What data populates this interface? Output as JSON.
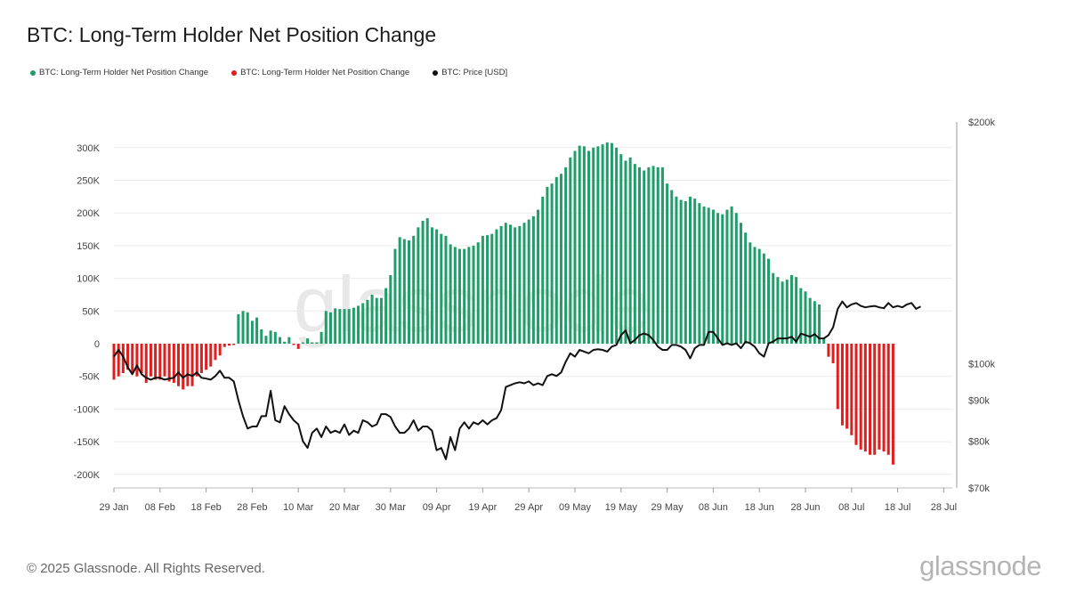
{
  "title": "BTC: Long-Term Holder Net Position Change",
  "legend": [
    {
      "label": "BTC: Long-Term Holder Net Position Change",
      "color": "#1f9e6a"
    },
    {
      "label": "BTC: Long-Term Holder Net Position Change",
      "color": "#e01e1e"
    },
    {
      "label": "BTC: Price [USD]",
      "color": "#111111"
    }
  ],
  "footer": "© 2025 Glassnode. All Rights Reserved.",
  "logo": "glassnode",
  "watermark": "glassnode",
  "colors": {
    "positive": "#1f9e6a",
    "negative": "#e01e1e",
    "price": "#111111"
  },
  "chart_data": {
    "type": "bar",
    "title": "BTC: Long-Term Holder Net Position Change",
    "start_date": "2025-01-29",
    "x_tick_labels": [
      "29 Jan",
      "08 Feb",
      "18 Feb",
      "28 Feb",
      "10 Mar",
      "20 Mar",
      "30 Mar",
      "09 Apr",
      "19 Apr",
      "29 Apr",
      "09 May",
      "19 May",
      "29 May",
      "08 Jun",
      "18 Jun",
      "28 Jun",
      "08 Jul",
      "18 Jul",
      "28 Jul"
    ],
    "y_left": {
      "ticks": [
        300000,
        250000,
        200000,
        150000,
        100000,
        50000,
        0,
        -50000,
        -100000,
        -150000,
        -200000
      ],
      "tick_labels": [
        "300K",
        "250K",
        "200K",
        "150K",
        "100K",
        "50K",
        "0",
        "-50K",
        "-100K",
        "-150K",
        "-200K"
      ],
      "range": [
        -220000,
        320000
      ]
    },
    "y_right": {
      "scale": "log",
      "ticks": [
        200000,
        100000,
        90000,
        80000,
        70000
      ],
      "tick_labels": [
        "$200k",
        "$100k",
        "$90k",
        "$80k",
        "$70k"
      ],
      "range": [
        70000,
        200000
      ]
    },
    "series": [
      {
        "name": "BTC: Long-Term Holder Net Position Change",
        "type": "bar",
        "values": [
          -55000,
          -50000,
          -45000,
          -40000,
          -45000,
          -50000,
          -45000,
          -60000,
          -50000,
          -55000,
          -55000,
          -50000,
          -58000,
          -60000,
          -65000,
          -70000,
          -65000,
          -65000,
          -50000,
          -45000,
          -40000,
          -35000,
          -25000,
          -18000,
          -5000,
          -3000,
          -2000,
          45000,
          50000,
          48000,
          35000,
          40000,
          22000,
          12000,
          20000,
          18000,
          10000,
          3000,
          10000,
          -2000,
          -8000,
          2000,
          8000,
          2000,
          2000,
          18000,
          50000,
          48000,
          54000,
          53000,
          53000,
          53000,
          55000,
          58000,
          62000,
          67000,
          75000,
          70000,
          70000,
          85000,
          105000,
          145000,
          163000,
          160000,
          158000,
          165000,
          178000,
          188000,
          192000,
          178000,
          175000,
          168000,
          165000,
          152000,
          148000,
          145000,
          145000,
          148000,
          150000,
          155000,
          165000,
          166000,
          168000,
          175000,
          180000,
          185000,
          182000,
          178000,
          180000,
          185000,
          190000,
          195000,
          205000,
          225000,
          240000,
          245000,
          255000,
          260000,
          270000,
          285000,
          295000,
          303000,
          302000,
          295000,
          300000,
          302000,
          305000,
          308000,
          307000,
          300000,
          290000,
          280000,
          285000,
          275000,
          270000,
          265000,
          270000,
          272000,
          270000,
          270000,
          245000,
          235000,
          225000,
          220000,
          218000,
          225000,
          222000,
          215000,
          210000,
          208000,
          205000,
          200000,
          198000,
          205000,
          210000,
          200000,
          185000,
          170000,
          155000,
          148000,
          145000,
          138000,
          130000,
          108000,
          102000,
          95000,
          98000,
          105000,
          102000,
          85000,
          80000,
          70000,
          65000,
          60000,
          8000,
          -20000,
          -30000,
          -100000,
          -125000,
          -130000,
          -140000,
          -155000,
          -162000,
          -165000,
          -170000,
          -170000,
          -162000,
          -165000,
          -170000,
          -185000
        ]
      },
      {
        "name": "BTC: Price [USD]",
        "type": "line",
        "axis": "right",
        "values": [
          102000,
          104000,
          102000,
          99000,
          97000,
          99500,
          97000,
          96000,
          95500,
          96000,
          96000,
          95500,
          95800,
          96000,
          97500,
          96000,
          97000,
          96500,
          97500,
          96000,
          95800,
          95500,
          96500,
          98000,
          96000,
          96000,
          95000,
          90000,
          86000,
          83000,
          83500,
          83500,
          86000,
          86000,
          92500,
          85000,
          84500,
          88500,
          86500,
          85000,
          84000,
          80000,
          78500,
          82000,
          83000,
          81000,
          83500,
          82000,
          82500,
          82000,
          84000,
          81500,
          82500,
          82000,
          85000,
          84500,
          83500,
          84000,
          86500,
          86500,
          85800,
          83500,
          82000,
          82000,
          83000,
          85000,
          82500,
          83500,
          83500,
          82500,
          78000,
          78500,
          76000,
          81000,
          78000,
          83000,
          84500,
          83000,
          84500,
          84000,
          85000,
          84000,
          85000,
          85500,
          87500,
          93500,
          94000,
          94500,
          94800,
          94500,
          95000,
          94000,
          94500,
          94000,
          96500,
          97000,
          96500,
          97500,
          100500,
          103000,
          102000,
          104000,
          103500,
          103000,
          104000,
          104200,
          104000,
          103500,
          105000,
          105500,
          108500,
          110000,
          106000,
          107000,
          108500,
          109000,
          108500,
          107000,
          105000,
          104000,
          104000,
          105500,
          105500,
          105000,
          104000,
          101500,
          104500,
          105500,
          105500,
          109500,
          109500,
          107500,
          105500,
          106000,
          105500,
          106000,
          104500,
          106500,
          106000,
          105000,
          103000,
          102000,
          106000,
          106500,
          107500,
          107500,
          107500,
          108000,
          106500,
          109000,
          108500,
          108000,
          108800,
          107500,
          107500,
          108500,
          111000,
          117000,
          119500,
          117500,
          118500,
          119000,
          118000,
          117500,
          117800,
          118000,
          117500,
          117200,
          119000,
          117500,
          118000,
          117500,
          118500,
          119000,
          117000,
          117800
        ]
      }
    ]
  }
}
